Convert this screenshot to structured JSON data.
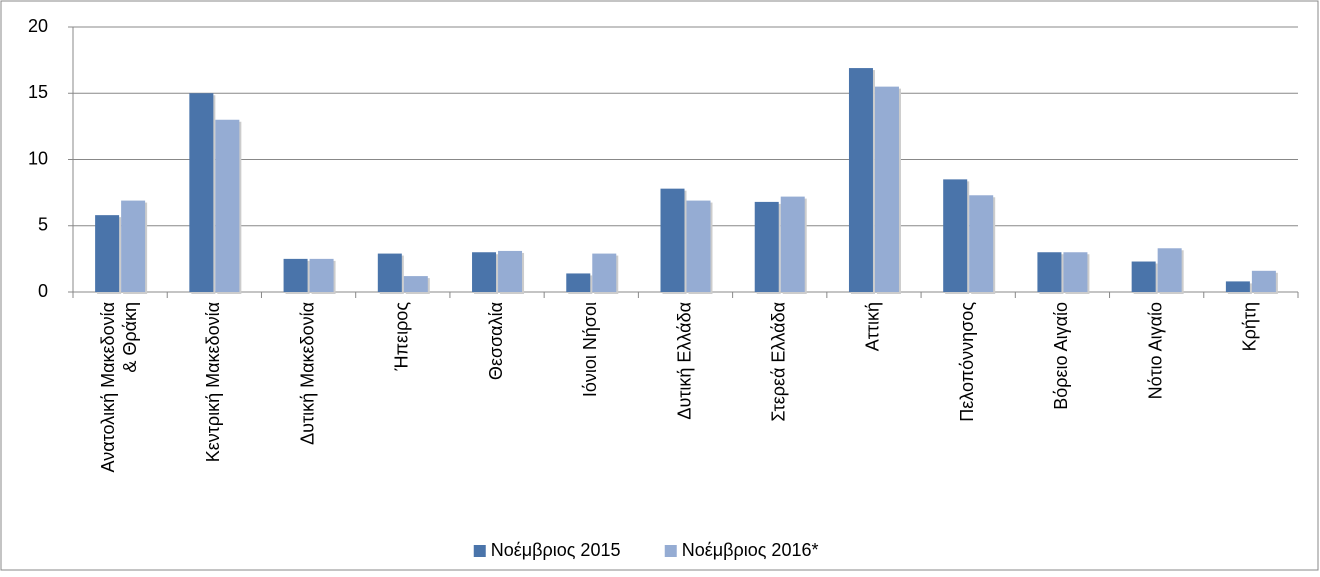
{
  "chart_data": {
    "type": "bar",
    "categories": [
      "Ανατολική Μακεδονία\n& Θράκη",
      "Κεντρική Μακεδονία",
      "Δυτική Μακεδονία",
      "Ήπειρος",
      "Θεσσαλία",
      "Ιόνιοι Νήσοι",
      "Δυτική Ελλάδα",
      "Στερεά Ελλάδα",
      "Αττική",
      "Πελοπόννησος",
      "Βόρειο Αιγαίο",
      "Νότιο Αιγαίο",
      "Κρήτη"
    ],
    "series": [
      {
        "name": "Νοέμβριος 2015",
        "color": "#4a74aa",
        "values": [
          5.8,
          15.0,
          2.5,
          2.9,
          3.0,
          1.4,
          7.8,
          6.8,
          16.9,
          8.5,
          3.0,
          2.3,
          0.8
        ]
      },
      {
        "name": "Νοέμβριος 2016*",
        "color": "#95acd3",
        "values": [
          6.9,
          13.0,
          2.5,
          1.2,
          3.1,
          2.9,
          6.9,
          7.2,
          15.5,
          7.3,
          3.0,
          3.3,
          1.6
        ]
      }
    ],
    "ylim": [
      0,
      20
    ],
    "yticks": [
      0,
      5,
      10,
      15,
      20
    ],
    "grid": true,
    "legend": "bottom"
  }
}
